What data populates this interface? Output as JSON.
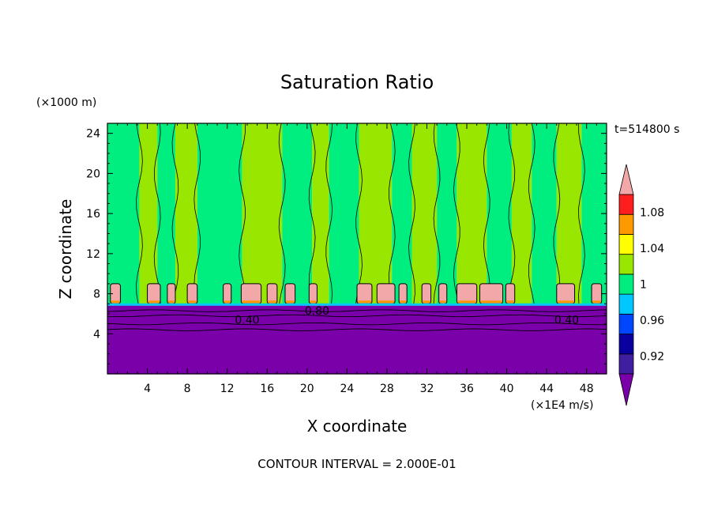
{
  "chart_data": {
    "type": "heatmap",
    "title": "Saturation Ratio",
    "xlabel": "X coordinate",
    "ylabel": "Z coordinate",
    "x_unit": "(×1E4 m/s)",
    "y_unit": "(×1000 m)",
    "time_label": "t=514800 s",
    "footer": "CONTOUR INTERVAL = 2.000E-01",
    "xlim": [
      0,
      50
    ],
    "ylim": [
      0,
      25
    ],
    "x_ticks": [
      4,
      8,
      12,
      16,
      20,
      24,
      28,
      32,
      36,
      40,
      44,
      48
    ],
    "x_tick_labels": [
      "4",
      "8",
      "12",
      "16",
      "20",
      "24",
      "28",
      "32",
      "36",
      "40",
      "44",
      "48"
    ],
    "y_ticks": [
      4,
      8,
      12,
      16,
      20,
      24
    ],
    "y_tick_labels": [
      "4",
      "8",
      "12",
      "16",
      "20",
      "24"
    ],
    "colorbar": {
      "levels": [
        0.9,
        0.92,
        0.94,
        0.96,
        0.98,
        1.0,
        1.02,
        1.04,
        1.06,
        1.08,
        1.1
      ],
      "labels": [
        "0.92",
        "0.96",
        "1",
        "1.04",
        "1.08"
      ],
      "label_values": [
        0.92,
        0.96,
        1.0,
        1.04,
        1.08
      ],
      "colors": [
        "#3f1f9f",
        "#0a00a0",
        "#0046ff",
        "#00c8ff",
        "#00ee80",
        "#99e600",
        "#ffff00",
        "#ff9900",
        "#ff1e1e"
      ],
      "under_color": "#7a00aa",
      "over_color": "#f2a8a8",
      "extend": "both"
    },
    "fields": {
      "lower_value": 0.4,
      "lower_top_z": 6.8,
      "cloud_band_z": [
        7.0,
        9.0
      ],
      "upper_regions_values": [
        0.99,
        1.01
      ]
    },
    "contour_labels": [
      {
        "text": "0.40",
        "x": 14.0,
        "y": 5.4
      },
      {
        "text": "0.40",
        "x": 46.0,
        "y": 5.4
      },
      {
        "text": "0.80",
        "x": 21.0,
        "y": 6.3
      }
    ],
    "bands": [
      {
        "x0": 0.0,
        "x1": 3.2,
        "value": 0.99
      },
      {
        "x0": 3.2,
        "x1": 5.0,
        "value": 1.01
      },
      {
        "x0": 5.0,
        "x1": 6.8,
        "value": 0.99
      },
      {
        "x0": 6.8,
        "x1": 9.0,
        "value": 1.01
      },
      {
        "x0": 9.0,
        "x1": 13.5,
        "value": 0.99
      },
      {
        "x0": 13.5,
        "x1": 17.5,
        "value": 1.01
      },
      {
        "x0": 17.5,
        "x1": 20.5,
        "value": 0.99
      },
      {
        "x0": 20.5,
        "x1": 22.2,
        "value": 1.01
      },
      {
        "x0": 22.2,
        "x1": 25.2,
        "value": 0.99
      },
      {
        "x0": 25.2,
        "x1": 28.5,
        "value": 1.01
      },
      {
        "x0": 28.5,
        "x1": 30.5,
        "value": 0.99
      },
      {
        "x0": 30.5,
        "x1": 33.0,
        "value": 1.01
      },
      {
        "x0": 33.0,
        "x1": 35.0,
        "value": 0.99
      },
      {
        "x0": 35.0,
        "x1": 38.0,
        "value": 1.01
      },
      {
        "x0": 38.0,
        "x1": 40.5,
        "value": 0.99
      },
      {
        "x0": 40.5,
        "x1": 42.5,
        "value": 1.01
      },
      {
        "x0": 42.5,
        "x1": 45.0,
        "value": 0.99
      },
      {
        "x0": 45.0,
        "x1": 47.5,
        "value": 1.01
      },
      {
        "x0": 47.5,
        "x1": 50.0,
        "value": 0.99
      }
    ],
    "cloud_cells": [
      {
        "x0": 0.3,
        "x1": 1.3
      },
      {
        "x0": 4.0,
        "x1": 5.3
      },
      {
        "x0": 6.0,
        "x1": 6.8
      },
      {
        "x0": 8.0,
        "x1": 9.0
      },
      {
        "x0": 11.6,
        "x1": 12.4
      },
      {
        "x0": 13.4,
        "x1": 15.4
      },
      {
        "x0": 16.0,
        "x1": 17.0
      },
      {
        "x0": 17.8,
        "x1": 18.8
      },
      {
        "x0": 20.2,
        "x1": 21.0
      },
      {
        "x0": 25.0,
        "x1": 26.5
      },
      {
        "x0": 27.0,
        "x1": 28.8
      },
      {
        "x0": 29.2,
        "x1": 30.0
      },
      {
        "x0": 31.5,
        "x1": 32.4
      },
      {
        "x0": 33.2,
        "x1": 34.0
      },
      {
        "x0": 35.0,
        "x1": 37.0
      },
      {
        "x0": 37.3,
        "x1": 39.6
      },
      {
        "x0": 39.9,
        "x1": 40.8
      },
      {
        "x0": 45.0,
        "x1": 46.8
      },
      {
        "x0": 48.5,
        "x1": 49.5
      }
    ]
  }
}
